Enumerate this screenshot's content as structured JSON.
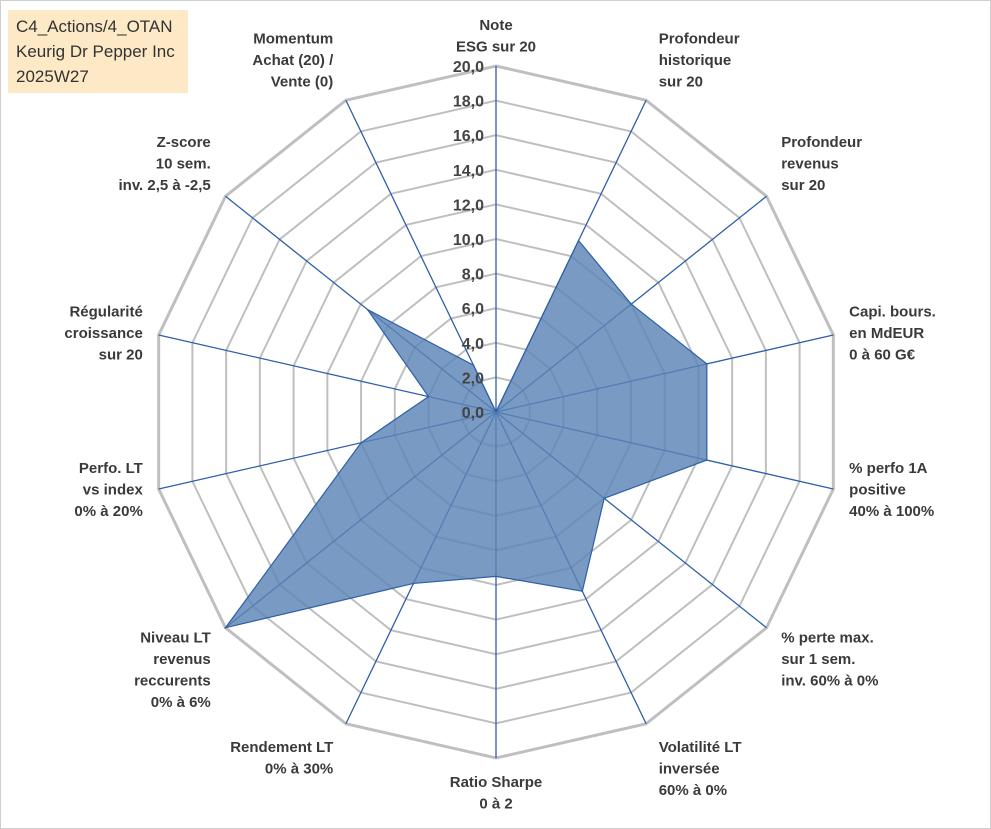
{
  "info_box": {
    "line1": "C4_Actions/4_OTAN",
    "line2": "Keurig Dr Pepper Inc",
    "line3": "2025W27"
  },
  "colors": {
    "grid": "#bfbfbf",
    "axis": "#2e5fa8",
    "fill": "#5b84b6",
    "info_bg": "#fde9c5"
  },
  "chart_data": {
    "type": "radar",
    "ylim": [
      0,
      20
    ],
    "tick_labels": [
      "0,0",
      "2,0",
      "4,0",
      "6,0",
      "8,0",
      "10,0",
      "12,0",
      "14,0",
      "16,0",
      "18,0",
      "20,0"
    ],
    "axes": [
      {
        "label": [
          "Note",
          "ESG sur 20"
        ],
        "value": 0
      },
      {
        "label": [
          "Profondeur",
          "historique",
          "sur 20"
        ],
        "value": 11
      },
      {
        "label": [
          "Profondeur",
          "revenus",
          "sur 20"
        ],
        "value": 10
      },
      {
        "label": [
          "Capi. bours.",
          "en MdEUR",
          "0 à 60 G€"
        ],
        "value": 12.5
      },
      {
        "label": [
          "% perfo 1A",
          "positive",
          "40% à 100%"
        ],
        "value": 12.5
      },
      {
        "label": [
          "% perte max.",
          "sur 1 sem.",
          "inv. 60% à 0%"
        ],
        "value": 8
      },
      {
        "label": [
          "Volatilité LT",
          "inversée",
          "60% à 0%"
        ],
        "value": 11.5
      },
      {
        "label": [
          "Ratio Sharpe",
          "0 à 2"
        ],
        "value": 9.5
      },
      {
        "label": [
          "Rendement LT",
          "0% à 30%"
        ],
        "value": 11
      },
      {
        "label": [
          "Niveau LT",
          "revenus",
          "reccurents",
          "0% à 6%"
        ],
        "value": 20
      },
      {
        "label": [
          "Perfo. LT",
          "vs index",
          "0% à 20%"
        ],
        "value": 8
      },
      {
        "label": [
          "Régularité",
          "croissance",
          "sur 20"
        ],
        "value": 4
      },
      {
        "label": [
          "Z-score",
          "10 sem.",
          "inv. 2,5 à -2,5"
        ],
        "value": 9.5
      },
      {
        "label": [
          "Momentum",
          "Achat (20) /",
          "Vente (0)"
        ],
        "value": 3
      }
    ]
  }
}
